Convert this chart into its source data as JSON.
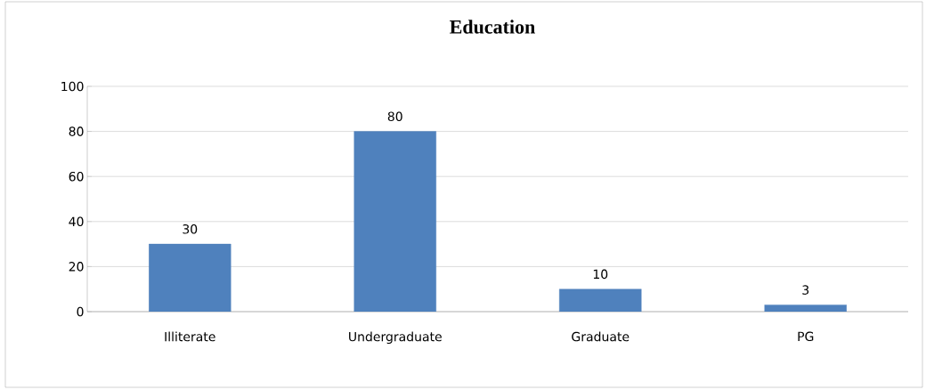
{
  "chart_data": {
    "type": "bar",
    "title": "Education",
    "categories": [
      "Illiterate",
      "Undergraduate",
      "Graduate",
      "PG"
    ],
    "values": [
      30,
      80,
      10,
      3
    ],
    "color": "#4f81bd",
    "ylim": [
      0,
      100
    ],
    "yticks": [
      0,
      20,
      40,
      60,
      80,
      100
    ],
    "grid": "y",
    "data_labels": true
  }
}
